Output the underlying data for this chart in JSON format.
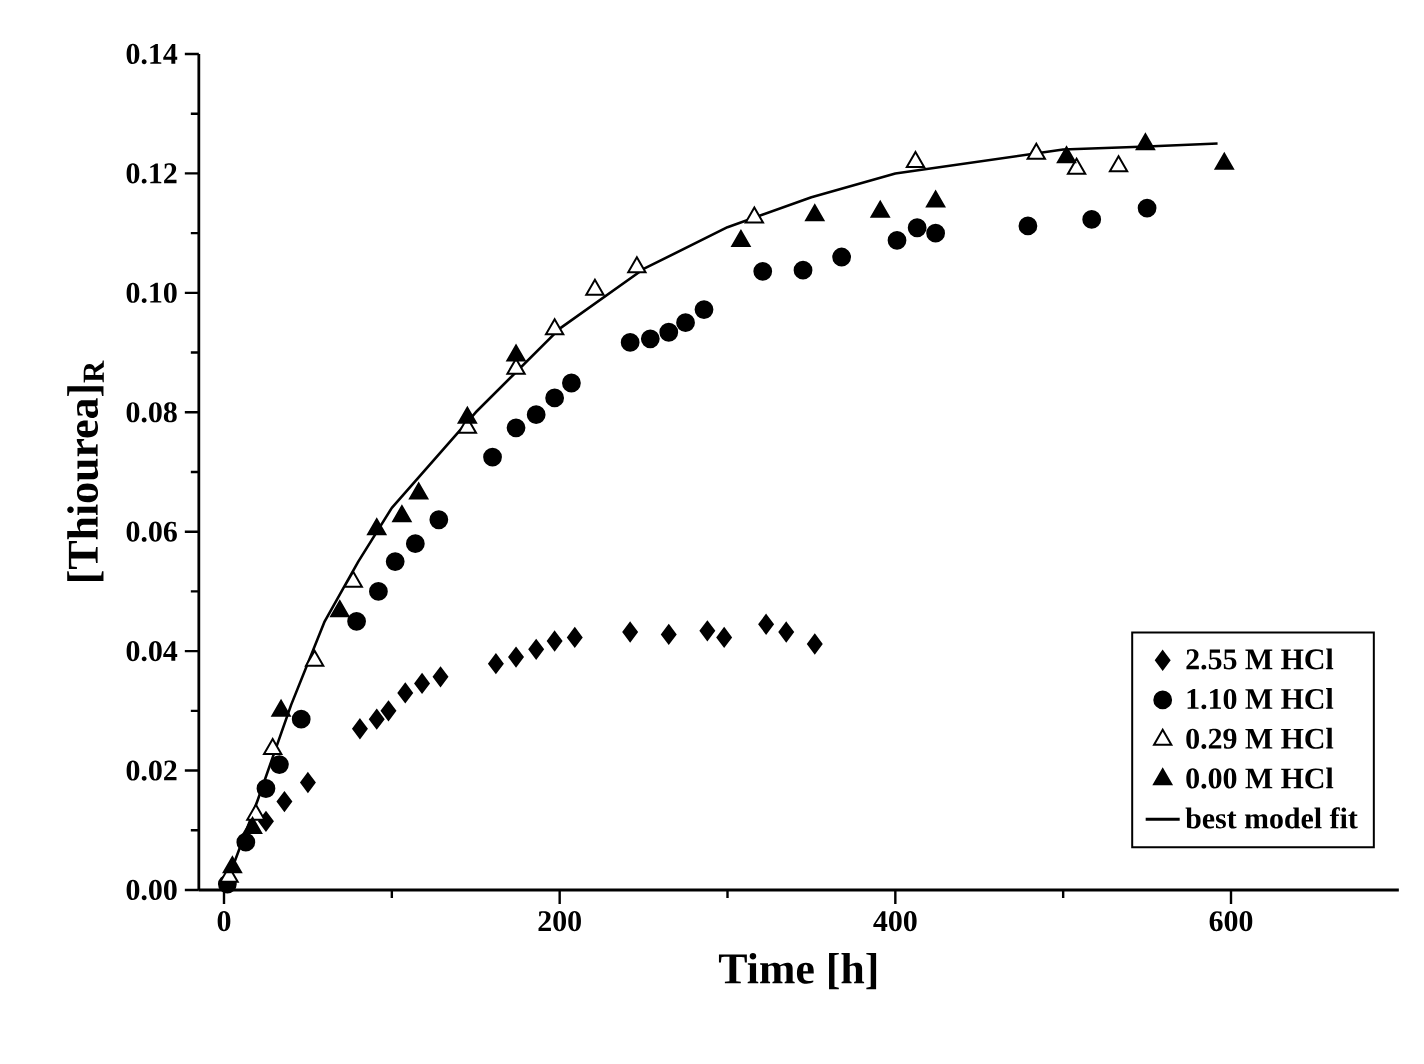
{
  "chart_data": {
    "type": "scatter",
    "xlabel": "Time [h]",
    "ylabel": "[Thiourea]$_{R}$",
    "xlim": [
      -15,
      700
    ],
    "ylim": [
      0,
      0.14
    ],
    "xticks": [
      0,
      200,
      400,
      600
    ],
    "yticks": [
      {
        "value": 0,
        "label": "0.00"
      },
      {
        "value": 0.02,
        "label": "0.02"
      },
      {
        "value": 0.04,
        "label": "0.04"
      },
      {
        "value": 0.06,
        "label": "0.06"
      },
      {
        "value": 0.08,
        "label": "0.08"
      },
      {
        "value": 0.1,
        "label": "0.10"
      },
      {
        "value": 0.12,
        "label": "0.12"
      },
      {
        "value": 0.14,
        "label": "0.14"
      }
    ],
    "legend": "bottom right",
    "grid": false,
    "series": [
      {
        "name": "2.55 M  HCl",
        "color": "#000000",
        "marker": "diamond",
        "x": [
          25,
          36,
          50,
          81,
          91,
          98,
          108,
          118,
          129,
          162,
          174,
          186,
          197,
          209,
          242,
          265,
          288,
          298,
          323,
          335,
          352
        ],
        "values": [
          0.0115,
          0.0148,
          0.018,
          0.027,
          0.0286,
          0.03,
          0.033,
          0.0346,
          0.0357,
          0.0379,
          0.039,
          0.0403,
          0.0417,
          0.0423,
          0.0432,
          0.0428,
          0.0434,
          0.0423,
          0.0445,
          0.0432,
          0.0412
        ]
      },
      {
        "name": "1.10 M  HCl",
        "color": "#000000",
        "marker": "circle",
        "x": [
          2,
          13,
          25,
          33,
          46,
          79,
          92,
          102,
          114,
          128,
          160,
          174,
          186,
          197,
          207,
          242,
          254,
          265,
          275,
          286,
          321,
          345,
          368,
          401,
          413,
          424,
          479,
          517,
          550
        ],
        "values": [
          0.001,
          0.008,
          0.017,
          0.021,
          0.0286,
          0.045,
          0.05,
          0.055,
          0.058,
          0.062,
          0.0725,
          0.0774,
          0.0796,
          0.0824,
          0.0849,
          0.0917,
          0.0923,
          0.0934,
          0.095,
          0.0972,
          0.1036,
          0.1038,
          0.106,
          0.1088,
          0.1109,
          0.11,
          0.1112,
          0.1123,
          0.1142
        ]
      },
      {
        "name": "0.29 M  HCl",
        "color": "#ffffff",
        "marker": "triangle",
        "x": [
          3,
          19,
          29,
          54,
          77,
          145,
          174,
          197,
          221,
          246,
          316,
          412,
          484,
          508,
          533
        ],
        "values": [
          0.0022,
          0.0126,
          0.0236,
          0.0384,
          0.0516,
          0.0774,
          0.0873,
          0.0939,
          0.1005,
          0.1043,
          0.1126,
          0.1219,
          0.1233,
          0.1208,
          0.1212
        ]
      },
      {
        "name": "0.00 M  HCl",
        "color": "#000000",
        "marker": "triangle",
        "x": [
          5,
          17,
          34,
          69,
          91,
          106,
          116,
          145,
          174,
          308,
          352,
          391,
          424,
          502,
          549,
          596
        ],
        "values": [
          0.0038,
          0.0104,
          0.03,
          0.0467,
          0.0604,
          0.0626,
          0.0664,
          0.0791,
          0.0895,
          0.1087,
          0.113,
          0.1136,
          0.1153,
          0.1227,
          0.1249,
          0.1216
        ]
      },
      {
        "name": "best model fit",
        "type": "line",
        "color": "#000000",
        "marker": "none",
        "line_style": "solid",
        "x": [
          0,
          20,
          40,
          60,
          80,
          100,
          150,
          200,
          250,
          300,
          350,
          400,
          450,
          500,
          550,
          592
        ],
        "values": [
          0,
          0.015,
          0.031,
          0.045,
          0.055,
          0.064,
          0.08,
          0.094,
          0.104,
          0.111,
          0.116,
          0.12,
          0.122,
          0.124,
          0.1245,
          0.125
        ]
      }
    ]
  }
}
